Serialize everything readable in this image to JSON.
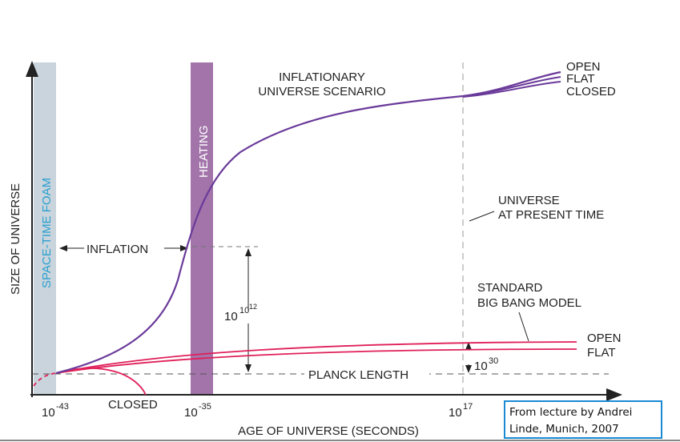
{
  "scenario": {
    "lines": [
      "INFLATIONARY",
      "UNIVERSE SCENARIO"
    ]
  },
  "top_curves": [
    "OPEN",
    "FLAT",
    "CLOSED"
  ],
  "heating": "HEATING",
  "foam": "SPACE-TIME FOAM",
  "y_axis_title": "SIZE OF UNIVERSE",
  "inflation": "INFLATION",
  "expansion": {
    "base": "10",
    "exp": "10",
    "exp_exp": "12"
  },
  "present": {
    "lines": [
      "UNIVERSE",
      "AT PRESENT TIME"
    ]
  },
  "standard": {
    "lines": [
      "STANDARD",
      "BIG BANG MODEL"
    ]
  },
  "bottom_curves": [
    "OPEN",
    "FLAT"
  ],
  "gap": {
    "base": "10",
    "exp": "30"
  },
  "planck": "PLANCK LENGTH",
  "closed": "CLOSED",
  "x_labels": [
    {
      "base": "10",
      "exp": "-43"
    },
    {
      "base": "10",
      "exp": "-35"
    },
    {
      "base": "10",
      "exp": "17"
    }
  ],
  "x_axis_title": "AGE OF UNIVERSE (SECONDS)",
  "citation": {
    "lines": [
      "From lecture by Andrei",
      "Linde, Munich, 2007"
    ]
  }
}
